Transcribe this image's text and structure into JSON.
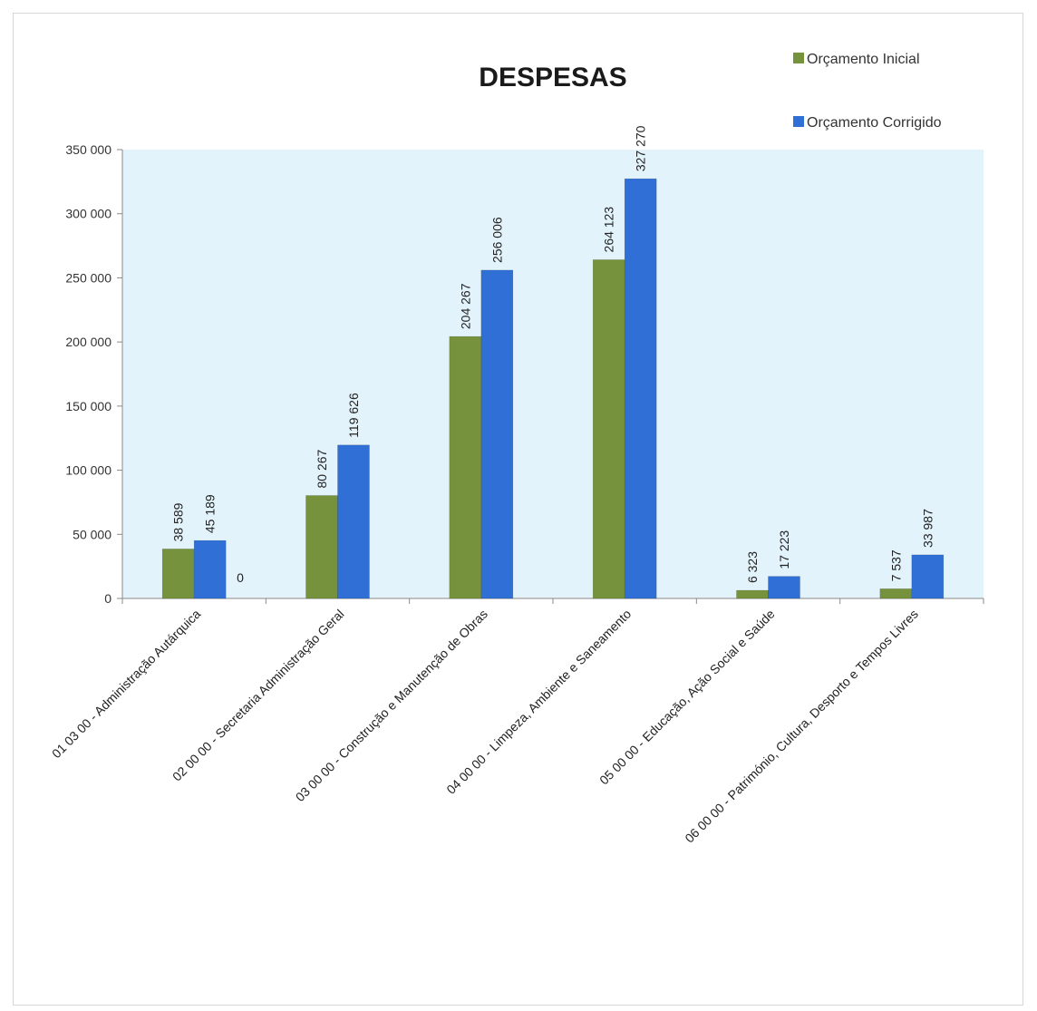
{
  "chart_data": {
    "type": "bar",
    "title": "DESPESAS",
    "xlabel": "",
    "ylabel": "",
    "ylim": [
      0,
      350000
    ],
    "yticks": [
      0,
      50000,
      100000,
      150000,
      200000,
      250000,
      300000,
      350000
    ],
    "ytick_labels": [
      "0",
      "50 000",
      "100 000",
      "150 000",
      "200 000",
      "250 000",
      "300 000",
      "350 000"
    ],
    "grid": false,
    "legend_position": "top-right",
    "categories": [
      "01 03 00 - Administração Autárquica",
      "02 00 00 - Secretaria Administração Geral",
      "03 00 00 - Construção e Manutenção de Obras",
      "04 00 00 - Limpeza, Ambiente e Saneamento",
      "05 00 00 - Educação, Ação Social e Saúde",
      "06 00 00 - Património, Cultura, Desporto e Tempos Livres"
    ],
    "series": [
      {
        "name": "Orçamento Inicial",
        "color": "#76923c",
        "values": [
          38589,
          80267,
          204267,
          264123,
          6323,
          7537
        ],
        "labels": [
          "38 589",
          "80 267",
          "204 267",
          "264 123",
          "6 323",
          "7 537"
        ]
      },
      {
        "name": "Orçamento Corrigido",
        "color": "#2f6fd6",
        "values": [
          45189,
          119626,
          256006,
          327270,
          17223,
          33987
        ],
        "labels": [
          "45 189",
          "119 626",
          "256 006",
          "327 270",
          "17 223",
          "33 987"
        ]
      }
    ],
    "extra_labels": [
      {
        "category_index": 0,
        "text": "0"
      }
    ],
    "plot_background": "#e3f3fb"
  }
}
